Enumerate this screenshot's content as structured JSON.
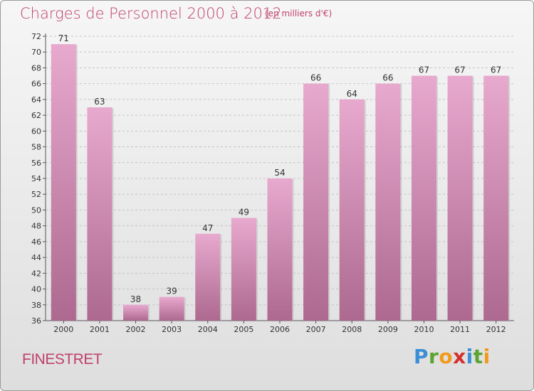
{
  "header": {
    "title": "Charges de Personnel 2000 à 2012",
    "unit": "(en milliers d'€)"
  },
  "footer": {
    "place": "FINESTRET",
    "brand": {
      "letters": [
        "P",
        "r",
        "o",
        "x",
        "i",
        "t",
        "i"
      ],
      "colors": [
        "#3b8fd6",
        "#5aa532",
        "#f29a1c",
        "#d62e2e",
        "#3b8fd6",
        "#5aa532",
        "#f29a1c"
      ]
    }
  },
  "colors": {
    "bar_light": "#e8a9cf",
    "bar_dark": "#ad6990",
    "label": "#333333",
    "axis": "#555555"
  },
  "chart_data": {
    "type": "bar",
    "title": "Charges de Personnel 2000 à 2012",
    "xlabel": "",
    "ylabel": "",
    "categories": [
      "2000",
      "2001",
      "2002",
      "2003",
      "2004",
      "2005",
      "2006",
      "2007",
      "2008",
      "2009",
      "2010",
      "2011",
      "2012"
    ],
    "values": [
      71,
      63,
      38,
      39,
      47,
      49,
      54,
      66,
      64,
      66,
      67,
      67,
      67
    ],
    "ylim": [
      36,
      72
    ],
    "yticks": [
      36,
      38,
      40,
      42,
      44,
      46,
      48,
      50,
      52,
      54,
      56,
      58,
      60,
      62,
      64,
      66,
      68,
      70,
      72
    ],
    "grid": true,
    "legend": "none"
  }
}
